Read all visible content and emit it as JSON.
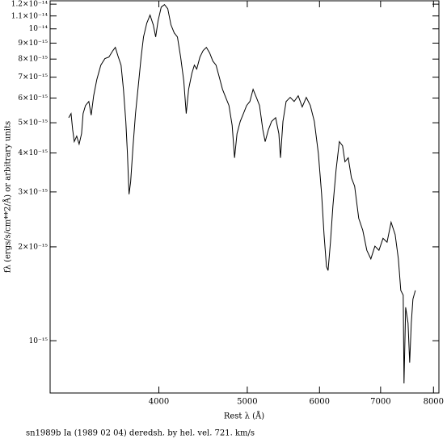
{
  "chart_data": {
    "type": "line",
    "x_label": "Rest λ (Å)",
    "y_label": "fλ (ergs/s/cm**2/Å) or arbitrary units",
    "caption": "sn1989b Ia (1989 02 04) deredsh. by hel. vel.    721. km/s",
    "color": "#000000",
    "xlog": true,
    "ylog": true,
    "xlim": [
      3040,
      8110
    ],
    "ylim": [
      6.8e-16,
      1.23e-14
    ],
    "xticks": [
      4000,
      5000,
      6000,
      7000,
      8000
    ],
    "yticks": [
      {
        "value": 1.2e-14,
        "label": "1.2×10⁻¹⁴"
      },
      {
        "value": 1.1e-14,
        "label": "1.1×10⁻¹⁴"
      },
      {
        "value": 1e-14,
        "label": "10⁻¹⁴"
      },
      {
        "value": 9e-15,
        "label": "9×10⁻¹⁵"
      },
      {
        "value": 8e-15,
        "label": "8×10⁻¹⁵"
      },
      {
        "value": 7e-15,
        "label": "7×10⁻¹⁵"
      },
      {
        "value": 6e-15,
        "label": "6×10⁻¹⁵"
      },
      {
        "value": 5e-15,
        "label": "5×10⁻¹⁵"
      },
      {
        "value": 4e-15,
        "label": "4×10⁻¹⁵"
      },
      {
        "value": 3e-15,
        "label": "3×10⁻¹⁵"
      },
      {
        "value": 2e-15,
        "label": "2×10⁻¹⁵"
      },
      {
        "value": 1e-15,
        "label": "10⁻¹⁵"
      }
    ],
    "x": [
      3186,
      3205,
      3218,
      3231,
      3251,
      3271,
      3291,
      3304,
      3324,
      3352,
      3372,
      3393,
      3420,
      3455,
      3491,
      3526,
      3562,
      3584,
      3606,
      3636,
      3658,
      3680,
      3695,
      3710,
      3725,
      3748,
      3771,
      3802,
      3825,
      3848,
      3880,
      3912,
      3944,
      3968,
      3992,
      4024,
      4057,
      4091,
      4124,
      4158,
      4192,
      4226,
      4260,
      4286,
      4312,
      4348,
      4375,
      4401,
      4437,
      4473,
      4510,
      4547,
      4584,
      4621,
      4659,
      4697,
      4735,
      4774,
      4813,
      4842,
      4872,
      4912,
      4952,
      4992,
      5033,
      5074,
      5116,
      5157,
      5200,
      5231,
      5274,
      5317,
      5371,
      5415,
      5437,
      5471,
      5515,
      5572,
      5628,
      5686,
      5744,
      5803,
      5862,
      5922,
      5983,
      6032,
      6069,
      6106,
      6131,
      6168,
      6206,
      6256,
      6308,
      6359,
      6398,
      6451,
      6503,
      6556,
      6624,
      6692,
      6761,
      6830,
      6900,
      6971,
      7043,
      7115,
      7188,
      7262,
      7321,
      7366,
      7411,
      7426,
      7457,
      7502,
      7533,
      7564,
      7595,
      7642
    ],
    "values": [
      5.19e-15,
      5.35e-15,
      4.75e-15,
      4.35e-15,
      4.53e-15,
      4.27e-15,
      4.61e-15,
      5.35e-15,
      5.68e-15,
      5.85e-15,
      5.29e-15,
      6.1e-15,
      6.87e-15,
      7.65e-15,
      8.03e-15,
      8.12e-15,
      8.52e-15,
      8.72e-15,
      8.22e-15,
      7.65e-15,
      6.4e-15,
      5.05e-15,
      3.98e-15,
      2.95e-15,
      3.23e-15,
      4.22e-15,
      5.35e-15,
      6.79e-15,
      8.12e-15,
      9.42e-15,
      1.043e-14,
      1.107e-14,
      1.03e-14,
      9.42e-15,
      1.061e-14,
      1.174e-14,
      1.196e-14,
      1.16e-14,
      1.03e-14,
      9.71e-15,
      9.42e-15,
      8.12e-15,
      6.79e-15,
      5.35e-15,
      6.4e-15,
      7.21e-15,
      7.65e-15,
      7.43e-15,
      8.12e-15,
      8.52e-15,
      8.72e-15,
      8.37e-15,
      7.88e-15,
      7.65e-15,
      7e-15,
      6.4e-15,
      6.03e-15,
      5.68e-15,
      4.9e-15,
      3.86e-15,
      4.61e-15,
      5.05e-15,
      5.35e-15,
      5.68e-15,
      5.85e-15,
      6.4e-15,
      6.03e-15,
      5.68e-15,
      4.75e-15,
      4.35e-15,
      4.75e-15,
      5.05e-15,
      5.19e-15,
      4.61e-15,
      3.86e-15,
      5.05e-15,
      5.85e-15,
      6.03e-15,
      5.85e-15,
      6.1e-15,
      5.62e-15,
      6.03e-15,
      5.68e-15,
      5.05e-15,
      3.98e-15,
      2.95e-15,
      2.19e-15,
      1.73e-15,
      1.68e-15,
      2.07e-15,
      2.7e-15,
      3.53e-15,
      4.35e-15,
      4.22e-15,
      3.75e-15,
      3.86e-15,
      3.33e-15,
      3.13e-15,
      2.47e-15,
      2.26e-15,
      1.95e-15,
      1.83e-15,
      2.01e-15,
      1.95e-15,
      2.13e-15,
      2.07e-15,
      2.4e-15,
      2.19e-15,
      1.83e-15,
      1.45e-15,
      1.4e-15,
      7.3e-16,
      1.28e-15,
      1.14e-15,
      8.5e-16,
      1.14e-15,
      1.36e-15,
      1.45e-15
    ]
  }
}
